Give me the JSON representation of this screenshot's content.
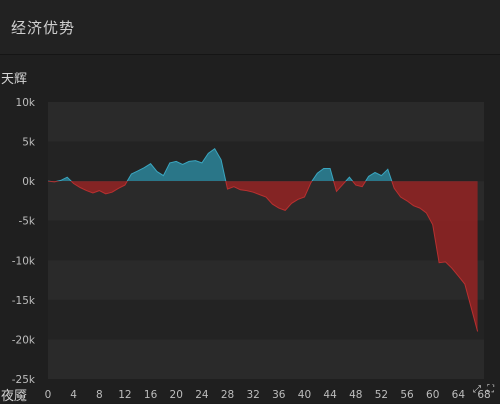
{
  "header": {
    "title": "经济优势"
  },
  "teams": {
    "top": "天辉",
    "bottom": "夜魇"
  },
  "colors": {
    "radiant": "#2b7f94",
    "dire": "#8e2323",
    "line_radiant": "#3aa6c0",
    "line_dire": "#b83030"
  },
  "icons": [
    "expand-icon",
    "fullscreen-icon"
  ],
  "chart_data": {
    "type": "area",
    "title": "经济优势",
    "xlabel": "",
    "ylabel": "",
    "xlim": [
      0,
      67
    ],
    "ylim": [
      -25000,
      10000
    ],
    "x_ticks": [
      0,
      4,
      8,
      12,
      16,
      20,
      24,
      28,
      32,
      36,
      40,
      44,
      48,
      52,
      56,
      60,
      64,
      68
    ],
    "x_tick_labels": [
      "0",
      "4",
      "8",
      "12",
      "16",
      "20",
      "24",
      "28",
      "32",
      "36",
      "40",
      "44",
      "48",
      "52",
      "56",
      "60",
      "64",
      "68"
    ],
    "y_ticks": [
      10000,
      5000,
      0,
      -5000,
      -10000,
      -15000,
      -20000,
      -25000
    ],
    "y_tick_labels": [
      "10k",
      "5k",
      "0k",
      "-5k",
      "-10k",
      "-15k",
      "-20k",
      "-25k"
    ],
    "grid": true,
    "series": [
      {
        "name": "",
        "x": [
          0,
          1,
          2,
          3,
          4,
          5,
          6,
          7,
          8,
          9,
          10,
          11,
          12,
          13,
          14,
          15,
          16,
          17,
          18,
          19,
          20,
          21,
          22,
          23,
          24,
          25,
          26,
          27,
          28,
          29,
          30,
          31,
          32,
          33,
          34,
          35,
          36,
          37,
          38,
          39,
          40,
          41,
          42,
          43,
          44,
          45,
          46,
          47,
          48,
          49,
          50,
          51,
          52,
          53,
          54,
          55,
          56,
          57,
          58,
          59,
          60,
          61,
          62,
          63,
          64,
          65,
          66,
          67
        ],
        "y": [
          0,
          -100,
          100,
          500,
          -300,
          -800,
          -1200,
          -1500,
          -1200,
          -1600,
          -1400,
          -900,
          -500,
          900,
          1300,
          1700,
          2200,
          1200,
          700,
          2300,
          2500,
          2100,
          2500,
          2600,
          2300,
          3500,
          4100,
          2700,
          -1000,
          -700,
          -1100,
          -1200,
          -1400,
          -1700,
          -2000,
          -2900,
          -3400,
          -3700,
          -2800,
          -2300,
          -2000,
          -200,
          1000,
          1600,
          1600,
          -1300,
          -400,
          500,
          -500,
          -700,
          600,
          1100,
          700,
          1500,
          -900,
          -2000,
          -2500,
          -3100,
          -3400,
          -4000,
          -5500,
          -10300,
          -10200,
          -11000,
          -12000,
          -13000,
          -16000,
          -19000
        ]
      }
    ]
  }
}
